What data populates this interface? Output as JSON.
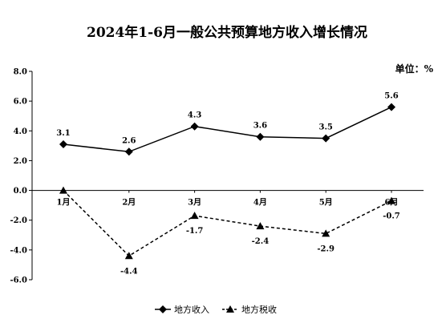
{
  "chart_data": {
    "type": "line",
    "title": "2024年1-6月一般公共预算地方收入增长情况",
    "unit_label": "单位：%",
    "categories": [
      "1月",
      "2月",
      "3月",
      "4月",
      "5月",
      "6月"
    ],
    "ylim": [
      -6.0,
      8.0
    ],
    "yticks": [
      "8.0",
      "6.0",
      "4.0",
      "2.0",
      "0.0",
      "-2.0",
      "-4.0",
      "-6.0"
    ],
    "ytick_values": [
      8,
      6,
      4,
      2,
      0,
      -2,
      -4,
      -6
    ],
    "grid": false,
    "legend_position": "bottom",
    "series": [
      {
        "name": "地方收入",
        "values": [
          3.1,
          2.6,
          4.3,
          3.6,
          3.5,
          5.6
        ],
        "labels": [
          "3.1",
          "2.6",
          "4.3",
          "3.6",
          "3.5",
          "5.6"
        ],
        "line_style": "solid",
        "marker": "diamond",
        "color": "#000000"
      },
      {
        "name": "地方税收",
        "values": [
          0.0,
          -4.4,
          -1.7,
          -2.4,
          -2.9,
          -0.7
        ],
        "labels": [
          "",
          "-4.4",
          "-1.7",
          "-2.4",
          "-2.9",
          "-0.7"
        ],
        "line_style": "dashed",
        "marker": "triangle",
        "color": "#000000"
      }
    ]
  }
}
